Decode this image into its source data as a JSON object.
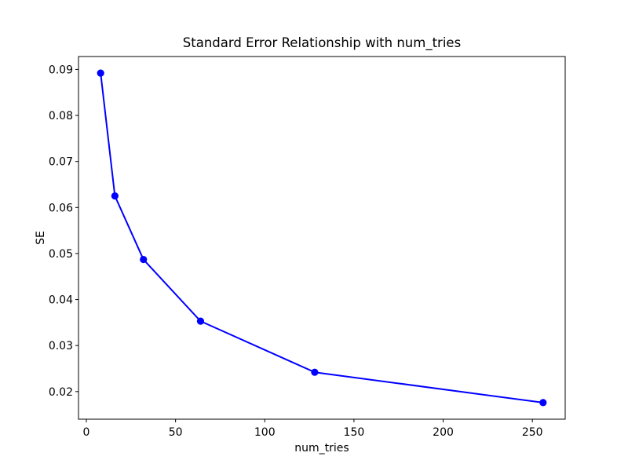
{
  "figure": {
    "background": "#ffffff",
    "text_color": "#000000",
    "spine_color": "#000000"
  },
  "chart_data": {
    "type": "line",
    "title": "Standard Error Relationship with num_tries",
    "xlabel": "num_tries",
    "ylabel": "SE",
    "x": [
      8,
      16,
      32,
      64,
      128,
      256
    ],
    "y": [
      0.0892,
      0.0625,
      0.0487,
      0.0353,
      0.0242,
      0.0176
    ],
    "line_color": "#0000ff",
    "marker": "circle",
    "marker_color": "#0000ff",
    "xlim": [
      -4.4,
      268.4
    ],
    "ylim": [
      0.014,
      0.0928
    ],
    "xticks": [
      0,
      50,
      100,
      150,
      200,
      250
    ],
    "yticks": [
      0.02,
      0.03,
      0.04,
      0.05,
      0.06,
      0.07,
      0.08,
      0.09
    ],
    "ytick_decimals": 2,
    "grid": false,
    "legend": "none"
  }
}
